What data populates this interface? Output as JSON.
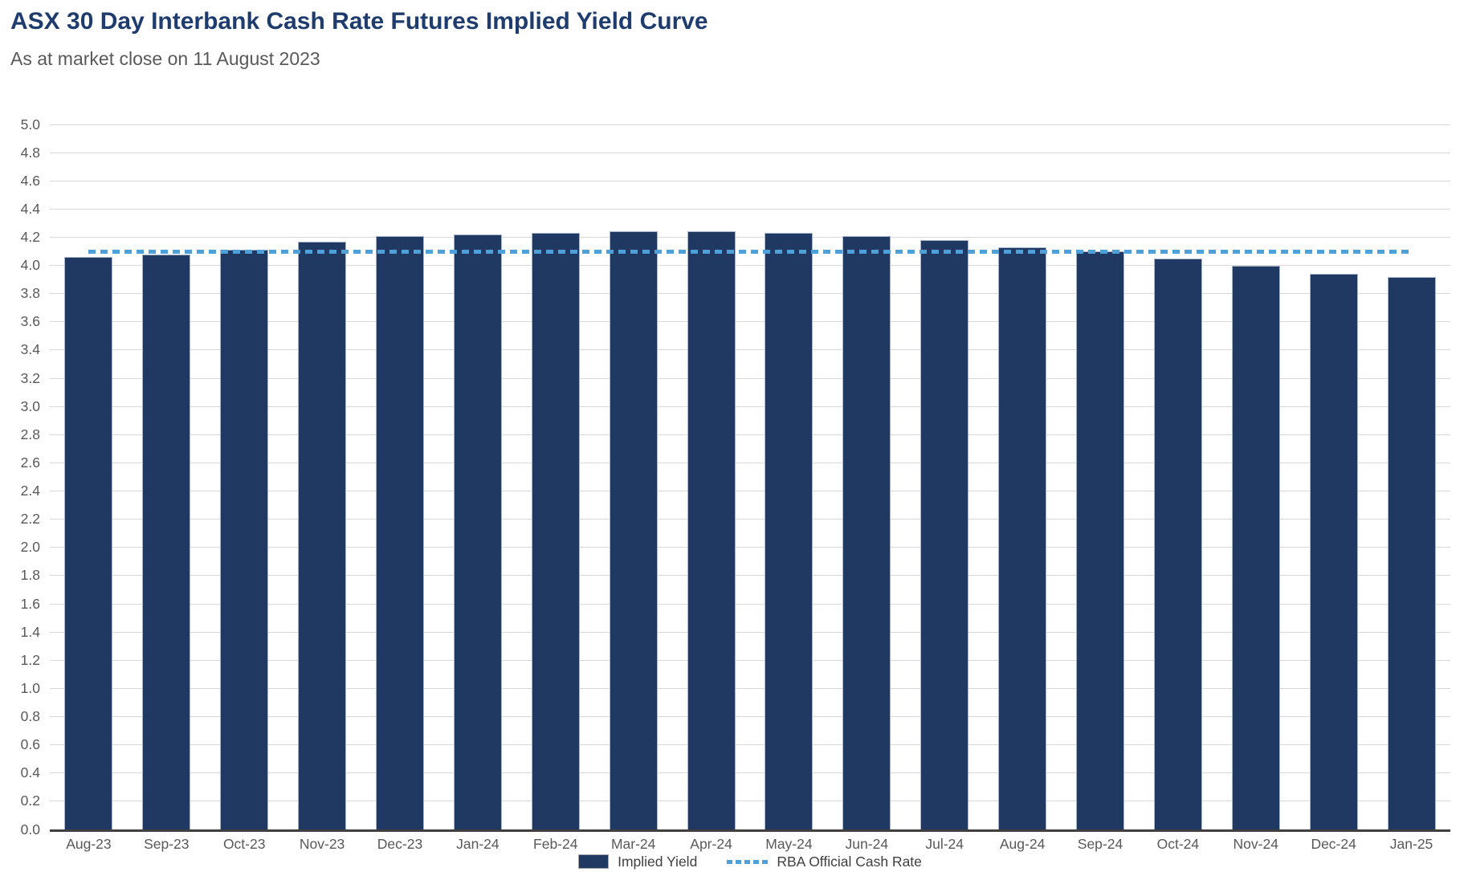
{
  "header": {
    "title": "ASX 30 Day Interbank Cash Rate Futures Implied Yield Curve",
    "subtitle": "As at market close on 11 August 2023"
  },
  "chart_data": {
    "type": "bar",
    "title": "ASX 30 Day Interbank Cash Rate Futures Implied Yield Curve",
    "subtitle": "As at market close on 11 August 2023",
    "categories": [
      "Aug-23",
      "Sep-23",
      "Oct-23",
      "Nov-23",
      "Dec-23",
      "Jan-24",
      "Feb-24",
      "Mar-24",
      "Apr-24",
      "May-24",
      "Jun-24",
      "Jul-24",
      "Aug-24",
      "Sep-24",
      "Oct-24",
      "Nov-24",
      "Dec-24",
      "Jan-25"
    ],
    "series": [
      {
        "name": "Implied Yield",
        "type": "bar",
        "color": "#1f3963",
        "values": [
          4.06,
          4.08,
          4.11,
          4.17,
          4.21,
          4.22,
          4.23,
          4.24,
          4.24,
          4.23,
          4.21,
          4.18,
          4.13,
          4.1,
          4.05,
          4.0,
          3.94,
          3.92
        ]
      },
      {
        "name": "RBA Official Cash Rate",
        "type": "dashed-line",
        "color": "#4f9fd8",
        "value": 4.1
      }
    ],
    "xlabel": "",
    "ylabel": "",
    "ylim": [
      0.0,
      5.0
    ],
    "ytick_step": 0.2,
    "yticks": [
      "0.0",
      "0.2",
      "0.4",
      "0.6",
      "0.8",
      "1.0",
      "1.2",
      "1.4",
      "1.6",
      "1.8",
      "2.0",
      "2.2",
      "2.4",
      "2.6",
      "2.8",
      "3.0",
      "3.2",
      "3.4",
      "3.6",
      "3.8",
      "4.0",
      "4.2",
      "4.4",
      "4.6",
      "4.8",
      "5.0"
    ],
    "grid": true,
    "legend_position": "bottom"
  },
  "colors": {
    "bar": "#1f3963",
    "rba_line": "#4f9fd8",
    "title": "#1e3c6e",
    "subtitle": "#595959",
    "axis_labels": "#595959",
    "gridline": "#d9d9d9",
    "axis_line": "#3f3f3f",
    "legend_text": "#404040",
    "background": "#ffffff"
  }
}
